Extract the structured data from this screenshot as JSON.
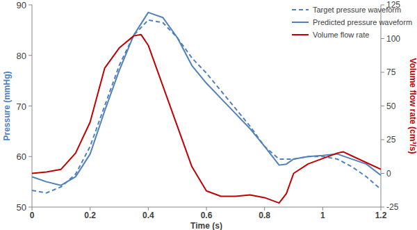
{
  "chart_data": {
    "type": "line",
    "xlabel": "Time (s)",
    "ylabel": "Pressure (mmHg)",
    "y2label": "Volume flow rate (cm³/s)",
    "xlim": [
      0,
      1.2
    ],
    "xticks": [
      0,
      0.2,
      0.4,
      0.6,
      0.8,
      1,
      1.2
    ],
    "ylim": [
      50,
      90
    ],
    "yticks": [
      50,
      60,
      70,
      80,
      90
    ],
    "y2lim": [
      -25,
      125
    ],
    "y2ticks": [
      -25,
      0,
      25,
      50,
      75,
      100,
      125
    ],
    "grid": false,
    "legend": "upper right",
    "series": [
      {
        "name": "Target pressure waveform",
        "color": "#4f81bd",
        "line_style": "dashed",
        "x": [
          0,
          0.05,
          0.1,
          0.15,
          0.2,
          0.25,
          0.3,
          0.35,
          0.4,
          0.45,
          0.5,
          0.55,
          0.6,
          0.65,
          0.7,
          0.75,
          0.8,
          0.85,
          0.9,
          0.95,
          1.0,
          1.05,
          1.1,
          1.15,
          1.2
        ],
        "values": [
          53.3,
          52.8,
          54.0,
          56.5,
          62,
          70,
          78,
          84,
          87,
          86.5,
          83.5,
          79.5,
          76.5,
          73,
          69.5,
          66,
          62,
          59.5,
          59.5,
          60,
          60,
          59.5,
          58,
          56,
          53.5
        ]
      },
      {
        "name": "Predicted pressure waveform",
        "color": "#4f81bd",
        "line_style": "solid",
        "x": [
          0,
          0.05,
          0.1,
          0.15,
          0.2,
          0.25,
          0.3,
          0.35,
          0.4,
          0.45,
          0.5,
          0.55,
          0.6,
          0.65,
          0.7,
          0.75,
          0.8,
          0.85,
          0.875,
          0.9,
          0.95,
          1.0,
          1.05,
          1.1,
          1.15,
          1.2
        ],
        "values": [
          56,
          55,
          54.3,
          56,
          60.5,
          69,
          77,
          84,
          88.5,
          87.5,
          83.5,
          78,
          74.5,
          71.5,
          68.5,
          65.5,
          62,
          58.3,
          58.5,
          59.5,
          60,
          60.2,
          60.5,
          59.5,
          58.5,
          56.3
        ]
      },
      {
        "name": "Volume flow rate",
        "color": "#c00000",
        "line_style": "solid",
        "axis": "y2",
        "x": [
          0,
          0.05,
          0.1,
          0.15,
          0.2,
          0.25,
          0.3,
          0.35,
          0.375,
          0.4,
          0.45,
          0.5,
          0.55,
          0.6,
          0.65,
          0.7,
          0.75,
          0.8,
          0.85,
          0.875,
          0.9,
          0.95,
          1.0,
          1.05,
          1.07,
          1.1,
          1.15,
          1.2
        ],
        "values": [
          0,
          1,
          3,
          15,
          38,
          78,
          93,
          102,
          103,
          95,
          65,
          35,
          5,
          -13,
          -17,
          -17,
          -16,
          -18,
          -22,
          -15,
          0,
          7,
          11,
          15,
          16,
          13,
          8,
          3
        ]
      }
    ]
  }
}
